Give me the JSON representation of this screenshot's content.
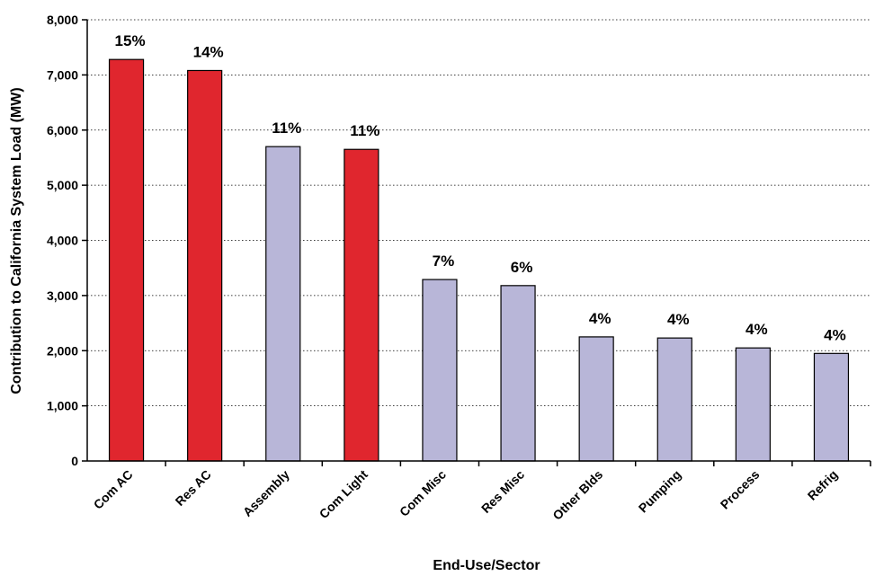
{
  "chart_data": {
    "type": "bar",
    "categories": [
      "Com AC",
      "Res AC",
      "Assembly",
      "Com Light",
      "Com Misc",
      "Res Misc",
      "Other Blds",
      "Pumping",
      "Process",
      "Refrig"
    ],
    "values": [
      7280,
      7080,
      5700,
      5650,
      3290,
      3180,
      2250,
      2230,
      2050,
      1950
    ],
    "data_labels": [
      "15%",
      "14%",
      "11%",
      "11%",
      "7%",
      "6%",
      "4%",
      "4%",
      "4%",
      "4%"
    ],
    "bar_colors": [
      "#e0262e",
      "#e0262e",
      "#b8b6d8",
      "#e0262e",
      "#b8b6d8",
      "#b8b6d8",
      "#b8b6d8",
      "#b8b6d8",
      "#b8b6d8",
      "#b8b6d8"
    ],
    "xlabel": "End-Use/Sector",
    "ylabel": "Contribution to California System Load (MW)",
    "ylim": [
      0,
      8000
    ],
    "yticks": [
      0,
      1000,
      2000,
      3000,
      4000,
      5000,
      6000,
      7000,
      8000
    ],
    "ytick_labels": [
      "0",
      "1,000",
      "2,000",
      "3,000",
      "4,000",
      "5,000",
      "6,000",
      "7,000",
      "8,000"
    ],
    "grid": true,
    "legend": "none"
  }
}
